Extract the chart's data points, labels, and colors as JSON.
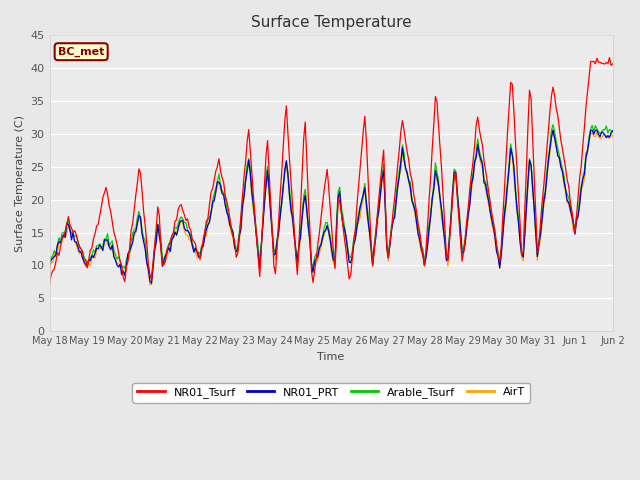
{
  "title": "Surface Temperature",
  "ylabel": "Surface Temperature (C)",
  "xlabel": "Time",
  "ylim": [
    0,
    45
  ],
  "bg_color": "#e8e8e8",
  "plot_bg_color": "#ebebeb",
  "annotation_text": "BC_met",
  "annotation_color": "#8B0000",
  "annotation_bg": "#ffffcc",
  "series_colors": {
    "NR01_Tsurf": "#ff0000",
    "NR01_PRT": "#0000cc",
    "Arable_Tsurf": "#00cc00",
    "AirT": "#ffa500"
  },
  "x_tick_labels": [
    "May 18",
    "May 19",
    "May 20",
    "May 21",
    "May 22",
    "May 23",
    "May 24",
    "May 25",
    "May 26",
    "May 27",
    "May 28",
    "May 29",
    "May 30",
    "May 31",
    "Jun 1",
    "Jun 2"
  ],
  "y_ticks": [
    0,
    5,
    10,
    15,
    20,
    25,
    30,
    35,
    40,
    45
  ],
  "red_daily_peaks": [
    17,
    22,
    25,
    20,
    19.5,
    26.5,
    31,
    30,
    35,
    33,
    25,
    22,
    33,
    28,
    32.5,
    37.5,
    25,
    33,
    40,
    39,
    38,
    41
  ],
  "red_daily_mins": [
    7.5,
    10,
    7,
    6.5,
    9.5,
    11,
    11,
    8,
    7,
    8,
    6.5,
    8.5,
    7,
    9.5,
    9.5,
    9.5,
    9.5,
    10,
    10,
    9.5,
    11,
    15
  ],
  "other_daily_peaks": [
    16,
    14,
    18,
    17,
    17,
    23,
    26,
    25,
    26,
    22,
    16,
    22,
    22,
    25,
    27.5,
    25,
    25.5,
    29,
    28.5,
    27,
    31,
    30
  ],
  "other_daily_mins": [
    10,
    10,
    9,
    7,
    10,
    11,
    12,
    10,
    10,
    10,
    9,
    10,
    10,
    10,
    10,
    10,
    10,
    11,
    10,
    10,
    11,
    15
  ]
}
